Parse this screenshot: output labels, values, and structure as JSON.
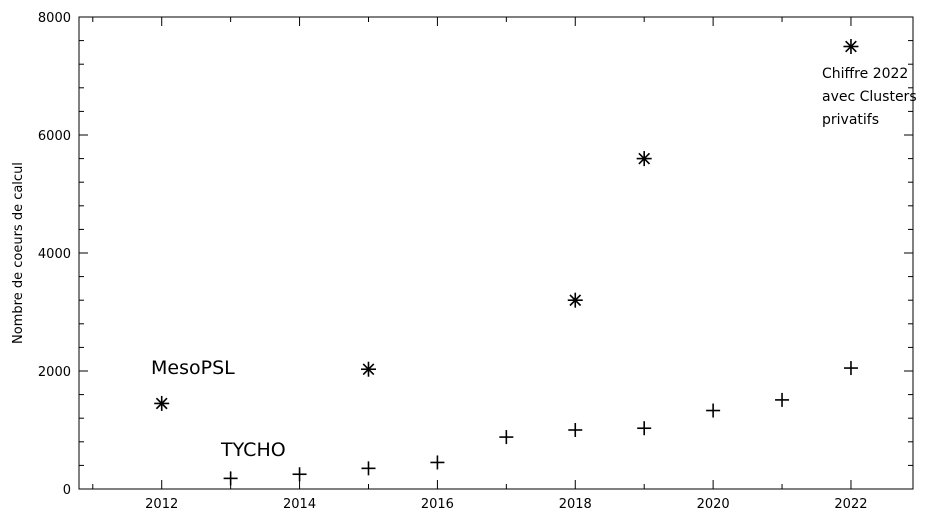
{
  "chart_data": {
    "type": "scatter",
    "ylabel": "Nombre de coeurs de calcul",
    "xlim": [
      2010.8,
      2022.9
    ],
    "ylim": [
      0,
      8000
    ],
    "xticks": [
      2012,
      2014,
      2016,
      2018,
      2020,
      2022
    ],
    "yticks": [
      0,
      2000,
      4000,
      6000,
      8000
    ],
    "x_minor_step": 1,
    "y_minor_step": 400,
    "grid": false,
    "series": [
      {
        "name": "MesoPSL",
        "marker": "asterisk",
        "points": [
          {
            "x": 2012,
            "y": 1450
          },
          {
            "x": 2015,
            "y": 2030
          },
          {
            "x": 2018,
            "y": 3200
          },
          {
            "x": 2019,
            "y": 5600
          },
          {
            "x": 2022,
            "y": 7500
          }
        ]
      },
      {
        "name": "TYCHO",
        "marker": "plus",
        "points": [
          {
            "x": 2013,
            "y": 180
          },
          {
            "x": 2014,
            "y": 250
          },
          {
            "x": 2015,
            "y": 350
          },
          {
            "x": 2016,
            "y": 450
          },
          {
            "x": 2017,
            "y": 880
          },
          {
            "x": 2018,
            "y": 1000
          },
          {
            "x": 2019,
            "y": 1030
          },
          {
            "x": 2020,
            "y": 1330
          },
          {
            "x": 2021,
            "y": 1510
          },
          {
            "x": 2022,
            "y": 2050
          }
        ]
      }
    ],
    "annotations": [
      {
        "text": "MesoPSL"
      },
      {
        "text": "TYCHO"
      },
      {
        "lines": [
          "Chiffre 2022",
          "avec Clusters",
          "privatifs"
        ]
      }
    ]
  }
}
